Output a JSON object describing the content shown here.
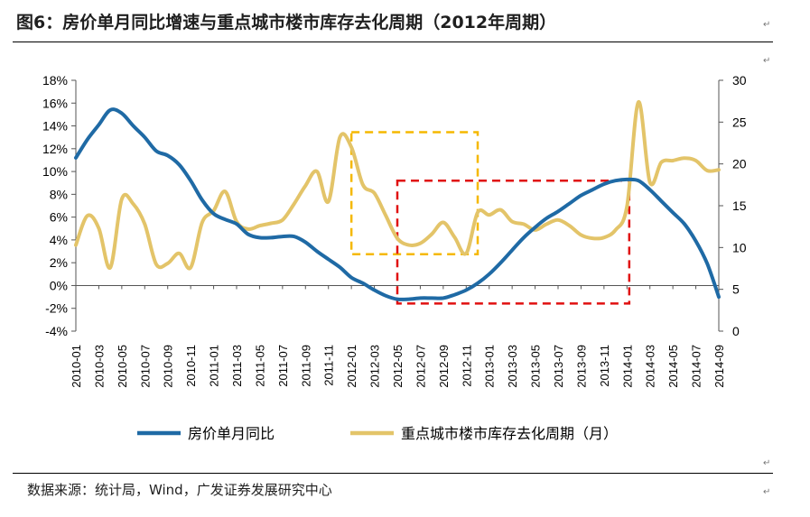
{
  "header": {
    "title": "图6：房价单月同比增速与重点城市楼市库存去化周期（2012年周期）"
  },
  "source": "数据来源：统计局，Wind，广发证券发展研究中心",
  "colors": {
    "series1": "#1f6aa5",
    "series2": "#e3c469",
    "box_yellow": "#f5b800",
    "box_red": "#e01010",
    "axis": "#555555"
  },
  "chart_data": {
    "type": "line",
    "title": "",
    "left_axis": {
      "ylim": [
        -4,
        18
      ],
      "ticks": [
        "18%",
        "16%",
        "14%",
        "12%",
        "10%",
        "8%",
        "6%",
        "4%",
        "2%",
        "0%",
        "-2%",
        "-4%"
      ]
    },
    "right_axis": {
      "ylim": [
        0,
        30
      ],
      "ticks": [
        "30",
        "25",
        "20",
        "15",
        "10",
        "5",
        "0"
      ]
    },
    "x_ticks": [
      "2010-01",
      "2010-03",
      "2010-05",
      "2010-07",
      "2010-09",
      "2010-11",
      "2011-01",
      "2011-03",
      "2011-05",
      "2011-07",
      "2011-09",
      "2011-11",
      "2012-01",
      "2012-03",
      "2012-05",
      "2012-07",
      "2012-09",
      "2012-11",
      "2013-01",
      "2013-03",
      "2013-05",
      "2013-07",
      "2013-09",
      "2013-11",
      "2014-01",
      "2014-03",
      "2014-05",
      "2014-07",
      "2014-09"
    ],
    "x_range": [
      0,
      56
    ],
    "series": [
      {
        "name": "房价单月同比",
        "axis": "left",
        "x": [
          0,
          1,
          2,
          3,
          4,
          5,
          6,
          7,
          8,
          9,
          10,
          11,
          12,
          13,
          14,
          15,
          16,
          17,
          18,
          19,
          20,
          21,
          22,
          23,
          24,
          25,
          26,
          27,
          28,
          29,
          30,
          31,
          32,
          33,
          34,
          35,
          36,
          37,
          38,
          39,
          40,
          41,
          42,
          43,
          44,
          45,
          46,
          47,
          48,
          49,
          50,
          51,
          52,
          53,
          54,
          55,
          56
        ],
        "values": [
          11.2,
          12.8,
          14.1,
          15.4,
          15.1,
          14.0,
          13.0,
          11.8,
          11.4,
          10.6,
          9.2,
          7.5,
          6.3,
          5.8,
          5.4,
          4.5,
          4.2,
          4.2,
          4.3,
          4.3,
          3.8,
          3.0,
          2.3,
          1.6,
          0.7,
          0.2,
          -0.4,
          -0.9,
          -1.2,
          -1.2,
          -1.1,
          -1.1,
          -1.1,
          -0.8,
          -0.4,
          0.2,
          1.0,
          2.0,
          3.1,
          4.2,
          5.1,
          5.9,
          6.5,
          7.2,
          7.9,
          8.4,
          8.9,
          9.2,
          9.3,
          9.2,
          8.4,
          7.4,
          6.4,
          5.4,
          3.9,
          1.9,
          -1.0
        ]
      },
      {
        "name": "重点城市楼市库存去化周期（月）",
        "axis": "right",
        "x": [
          0,
          1,
          2,
          3,
          4,
          5,
          6,
          7,
          8,
          9,
          10,
          11,
          12,
          13,
          14,
          15,
          16,
          17,
          18,
          19,
          20,
          21,
          22,
          23,
          24,
          25,
          26,
          27,
          28,
          29,
          30,
          31,
          32,
          33,
          34,
          35,
          36,
          37,
          38,
          39,
          40,
          41,
          42,
          43,
          44,
          45,
          46,
          47,
          48,
          49,
          50,
          51,
          52,
          53,
          54,
          55,
          56
        ],
        "values": [
          10.3,
          13.8,
          12.3,
          7.6,
          15.8,
          15.2,
          12.8,
          8.0,
          8.1,
          9.3,
          7.6,
          13.0,
          14.4,
          16.7,
          13.1,
          12.2,
          12.6,
          12.9,
          13.3,
          15.2,
          17.4,
          19.1,
          15.5,
          23.2,
          22.0,
          17.5,
          16.5,
          13.8,
          11.1,
          10.3,
          10.5,
          11.6,
          13.0,
          11.2,
          9.3,
          14.2,
          13.9,
          14.5,
          13.1,
          12.8,
          12.1,
          12.8,
          13.3,
          12.6,
          11.5,
          11.1,
          11.2,
          12.1,
          14.9,
          27.4,
          17.8,
          20.2,
          20.4,
          20.7,
          20.4,
          19.2,
          19.3
        ]
      }
    ],
    "annotations": [
      {
        "type": "dashed-box",
        "color": "yellow",
        "x_range": [
          24,
          35
        ],
        "right_y_range": [
          9.2,
          23.8
        ]
      },
      {
        "type": "dashed-box",
        "color": "red",
        "x_range": [
          28,
          48.2
        ],
        "right_y_range": [
          3.3,
          18.0
        ]
      }
    ],
    "legend": {
      "position": "bottom",
      "entries": [
        "房价单月同比",
        "重点城市楼市库存去化周期（月）"
      ]
    }
  }
}
